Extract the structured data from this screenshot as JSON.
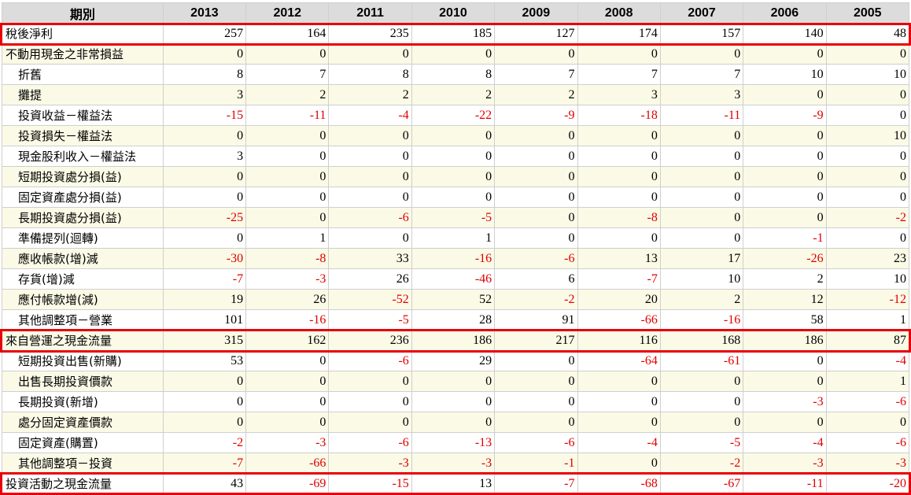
{
  "header": {
    "period_label": "期別",
    "years": [
      "2013",
      "2012",
      "2011",
      "2010",
      "2009",
      "2008",
      "2007",
      "2006",
      "2005"
    ]
  },
  "rows": [
    {
      "label": "稅後淨利",
      "indent": false,
      "values": [
        "257",
        "164",
        "235",
        "185",
        "127",
        "174",
        "157",
        "140",
        "48"
      ]
    },
    {
      "label": "不動用現金之非常損益",
      "indent": false,
      "values": [
        "0",
        "0",
        "0",
        "0",
        "0",
        "0",
        "0",
        "0",
        "0"
      ]
    },
    {
      "label": "折舊",
      "indent": true,
      "values": [
        "8",
        "7",
        "8",
        "8",
        "7",
        "7",
        "7",
        "10",
        "10"
      ]
    },
    {
      "label": "攤提",
      "indent": true,
      "values": [
        "3",
        "2",
        "2",
        "2",
        "2",
        "3",
        "3",
        "0",
        "0"
      ]
    },
    {
      "label": "投資收益－權益法",
      "indent": true,
      "values": [
        "-15",
        "-11",
        "-4",
        "-22",
        "-9",
        "-18",
        "-11",
        "-9",
        "0"
      ]
    },
    {
      "label": "投資損失－權益法",
      "indent": true,
      "values": [
        "0",
        "0",
        "0",
        "0",
        "0",
        "0",
        "0",
        "0",
        "10"
      ]
    },
    {
      "label": "現金股利收入－權益法",
      "indent": true,
      "values": [
        "3",
        "0",
        "0",
        "0",
        "0",
        "0",
        "0",
        "0",
        "0"
      ]
    },
    {
      "label": "短期投資處分損(益)",
      "indent": true,
      "values": [
        "0",
        "0",
        "0",
        "0",
        "0",
        "0",
        "0",
        "0",
        "0"
      ]
    },
    {
      "label": "固定資產處分損(益)",
      "indent": true,
      "values": [
        "0",
        "0",
        "0",
        "0",
        "0",
        "0",
        "0",
        "0",
        "0"
      ]
    },
    {
      "label": "長期投資處分損(益)",
      "indent": true,
      "values": [
        "-25",
        "0",
        "-6",
        "-5",
        "0",
        "-8",
        "0",
        "0",
        "-2"
      ]
    },
    {
      "label": "準備提列(迴轉)",
      "indent": true,
      "values": [
        "0",
        "1",
        "0",
        "1",
        "0",
        "0",
        "0",
        "-1",
        "0"
      ]
    },
    {
      "label": "應收帳款(增)減",
      "indent": true,
      "values": [
        "-30",
        "-8",
        "33",
        "-16",
        "-6",
        "13",
        "17",
        "-26",
        "23"
      ]
    },
    {
      "label": "存貨(增)減",
      "indent": true,
      "values": [
        "-7",
        "-3",
        "26",
        "-46",
        "6",
        "-7",
        "10",
        "2",
        "10"
      ]
    },
    {
      "label": "應付帳款增(減)",
      "indent": true,
      "values": [
        "19",
        "26",
        "-52",
        "52",
        "-2",
        "20",
        "2",
        "12",
        "-12"
      ]
    },
    {
      "label": "其他調整項－營業",
      "indent": true,
      "values": [
        "101",
        "-16",
        "-5",
        "28",
        "91",
        "-66",
        "-16",
        "58",
        "1"
      ]
    },
    {
      "label": "來自營運之現金流量",
      "indent": false,
      "values": [
        "315",
        "162",
        "236",
        "186",
        "217",
        "116",
        "168",
        "186",
        "87"
      ]
    },
    {
      "label": "短期投資出售(新購)",
      "indent": true,
      "values": [
        "53",
        "0",
        "-6",
        "29",
        "0",
        "-64",
        "-61",
        "0",
        "-4"
      ]
    },
    {
      "label": "出售長期投資價款",
      "indent": true,
      "values": [
        "0",
        "0",
        "0",
        "0",
        "0",
        "0",
        "0",
        "0",
        "1"
      ]
    },
    {
      "label": "長期投資(新增)",
      "indent": true,
      "values": [
        "0",
        "0",
        "0",
        "0",
        "0",
        "0",
        "0",
        "-3",
        "-6"
      ]
    },
    {
      "label": "處分固定資產價款",
      "indent": true,
      "values": [
        "0",
        "0",
        "0",
        "0",
        "0",
        "0",
        "0",
        "0",
        "0"
      ]
    },
    {
      "label": "固定資產(購置)",
      "indent": true,
      "values": [
        "-2",
        "-3",
        "-6",
        "-13",
        "-6",
        "-4",
        "-5",
        "-4",
        "-6"
      ]
    },
    {
      "label": "其他調整項－投資",
      "indent": true,
      "values": [
        "-7",
        "-66",
        "-3",
        "-3",
        "-1",
        "0",
        "-2",
        "-3",
        "-3"
      ]
    },
    {
      "label": "投資活動之現金流量",
      "indent": false,
      "values": [
        "43",
        "-69",
        "-15",
        "13",
        "-7",
        "-68",
        "-67",
        "-11",
        "-20"
      ]
    }
  ],
  "colors": {
    "negative": "#e00000",
    "highlight": "#e8000b",
    "header_bg": "#dcdcdc",
    "alt_row_bg": "#fafae6"
  }
}
